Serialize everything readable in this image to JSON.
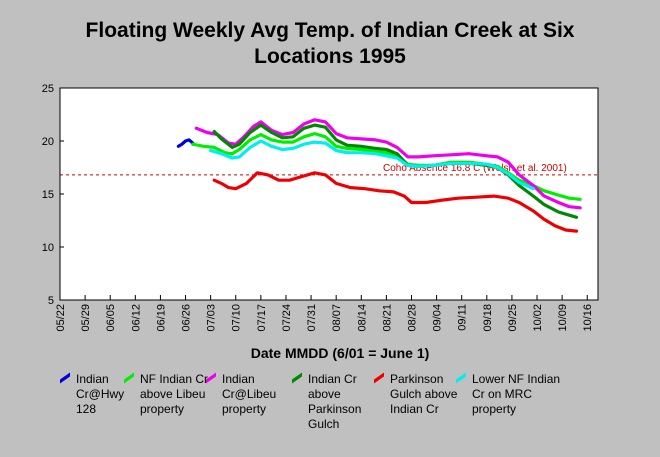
{
  "chart_data": {
    "type": "line",
    "title_line1": "Floating Weekly Avg Temp. of Indian Creek at Six",
    "title_line2": "Locations 1995",
    "xlabel": "Date MMDD (6/01 = June 1)",
    "ylabel": "",
    "ylim": [
      5,
      25
    ],
    "yticks": [
      5,
      10,
      15,
      20,
      25
    ],
    "x_axis": {
      "start": "05/22",
      "end": "10/19",
      "tick_labels": [
        "05/22",
        "05/29",
        "06/05",
        "06/12",
        "06/19",
        "06/26",
        "07/03",
        "07/10",
        "07/17",
        "07/24",
        "07/31",
        "08/07",
        "08/14",
        "08/21",
        "08/28",
        "09/04",
        "09/11",
        "09/18",
        "09/25",
        "10/02",
        "10/09",
        "10/16"
      ]
    },
    "reference_line": {
      "value": 16.8,
      "label": "Coho Absence 16.8 C (Welsh et al. 2001)",
      "color": "#cc0000"
    },
    "grid": false,
    "legend_position": "bottom",
    "series": [
      {
        "name": "Indian Cr@Hwy 128",
        "color": "#0000dd",
        "points": [
          [
            "06/24",
            19.5
          ],
          [
            "06/25",
            19.7
          ],
          [
            "06/26",
            20.0
          ],
          [
            "06/27",
            20.1
          ],
          [
            "06/28",
            19.8
          ]
        ]
      },
      {
        "name": "NF Indian Cr above Libeu property",
        "color": "#00ee00",
        "points": [
          [
            "06/28",
            19.7
          ],
          [
            "07/01",
            19.5
          ],
          [
            "07/04",
            19.4
          ],
          [
            "07/07",
            18.9
          ],
          [
            "07/09",
            18.8
          ],
          [
            "07/11",
            19.2
          ],
          [
            "07/14",
            20.1
          ],
          [
            "07/17",
            20.6
          ],
          [
            "07/20",
            20.1
          ],
          [
            "07/23",
            19.9
          ],
          [
            "07/26",
            19.9
          ],
          [
            "07/29",
            20.4
          ],
          [
            "08/01",
            20.7
          ],
          [
            "08/04",
            20.4
          ],
          [
            "08/07",
            19.5
          ],
          [
            "08/10",
            19.3
          ],
          [
            "08/14",
            19.2
          ],
          [
            "08/18",
            19.0
          ],
          [
            "08/21",
            18.9
          ],
          [
            "08/24",
            18.6
          ],
          [
            "08/27",
            17.8
          ],
          [
            "08/30",
            17.7
          ],
          [
            "09/03",
            17.7
          ],
          [
            "09/08",
            18.0
          ],
          [
            "09/13",
            18.0
          ],
          [
            "09/18",
            17.8
          ],
          [
            "09/21",
            17.6
          ],
          [
            "09/24",
            17.0
          ],
          [
            "09/27",
            16.3
          ],
          [
            "10/01",
            15.8
          ],
          [
            "10/04",
            15.3
          ],
          [
            "10/08",
            14.9
          ],
          [
            "10/11",
            14.6
          ],
          [
            "10/14",
            14.5
          ]
        ]
      },
      {
        "name": "Indian Cr@Libeu property",
        "color": "#ee00ee",
        "points": [
          [
            "06/29",
            21.2
          ],
          [
            "07/02",
            20.8
          ],
          [
            "07/05",
            20.6
          ],
          [
            "07/08",
            19.8
          ],
          [
            "07/10",
            19.7
          ],
          [
            "07/12",
            20.3
          ],
          [
            "07/15",
            21.4
          ],
          [
            "07/17",
            21.8
          ],
          [
            "07/20",
            21.0
          ],
          [
            "07/23",
            20.6
          ],
          [
            "07/26",
            20.8
          ],
          [
            "07/29",
            21.6
          ],
          [
            "08/01",
            22.0
          ],
          [
            "08/04",
            21.8
          ],
          [
            "08/07",
            20.7
          ],
          [
            "08/10",
            20.3
          ],
          [
            "08/14",
            20.2
          ],
          [
            "08/18",
            20.1
          ],
          [
            "08/21",
            19.9
          ],
          [
            "08/24",
            19.4
          ],
          [
            "08/27",
            18.5
          ],
          [
            "08/30",
            18.5
          ],
          [
            "09/03",
            18.6
          ],
          [
            "09/08",
            18.7
          ],
          [
            "09/13",
            18.8
          ],
          [
            "09/18",
            18.6
          ],
          [
            "09/21",
            18.5
          ],
          [
            "09/24",
            18.0
          ],
          [
            "09/27",
            16.8
          ],
          [
            "10/01",
            15.8
          ],
          [
            "10/04",
            14.8
          ],
          [
            "10/08",
            14.2
          ],
          [
            "10/11",
            13.8
          ],
          [
            "10/14",
            13.7
          ]
        ]
      },
      {
        "name": "Indian Cr above Parkinson Gulch",
        "color": "#008800",
        "points": [
          [
            "07/04",
            20.9
          ],
          [
            "07/06",
            20.2
          ],
          [
            "07/09",
            19.4
          ],
          [
            "07/11",
            19.7
          ],
          [
            "07/14",
            20.8
          ],
          [
            "07/17",
            21.5
          ],
          [
            "07/20",
            20.8
          ],
          [
            "07/23",
            20.3
          ],
          [
            "07/26",
            20.4
          ],
          [
            "07/29",
            21.2
          ],
          [
            "08/01",
            21.5
          ],
          [
            "08/04",
            21.3
          ],
          [
            "08/07",
            20.1
          ],
          [
            "08/10",
            19.6
          ],
          [
            "08/14",
            19.5
          ],
          [
            "08/18",
            19.3
          ],
          [
            "08/21",
            19.2
          ],
          [
            "08/24",
            18.8
          ],
          [
            "08/27",
            17.7
          ],
          [
            "08/30",
            17.6
          ],
          [
            "09/03",
            17.7
          ],
          [
            "09/08",
            17.9
          ],
          [
            "09/13",
            17.9
          ],
          [
            "09/18",
            17.7
          ],
          [
            "09/21",
            17.5
          ],
          [
            "09/24",
            16.8
          ],
          [
            "09/27",
            15.8
          ],
          [
            "10/01",
            14.8
          ],
          [
            "10/04",
            14.0
          ],
          [
            "10/08",
            13.3
          ],
          [
            "10/11",
            13.0
          ],
          [
            "10/13",
            12.8
          ]
        ]
      },
      {
        "name": "Parkinson Gulch above Indian Cr",
        "color": "#ee0000",
        "points": [
          [
            "07/04",
            16.3
          ],
          [
            "07/06",
            16.0
          ],
          [
            "07/08",
            15.6
          ],
          [
            "07/10",
            15.5
          ],
          [
            "07/13",
            16.0
          ],
          [
            "07/16",
            17.0
          ],
          [
            "07/19",
            16.8
          ],
          [
            "07/22",
            16.3
          ],
          [
            "07/25",
            16.3
          ],
          [
            "07/28",
            16.6
          ],
          [
            "08/01",
            17.0
          ],
          [
            "08/04",
            16.8
          ],
          [
            "08/07",
            16.0
          ],
          [
            "08/11",
            15.6
          ],
          [
            "08/15",
            15.5
          ],
          [
            "08/19",
            15.3
          ],
          [
            "08/23",
            15.2
          ],
          [
            "08/26",
            14.8
          ],
          [
            "08/28",
            14.2
          ],
          [
            "09/01",
            14.2
          ],
          [
            "09/05",
            14.4
          ],
          [
            "09/10",
            14.6
          ],
          [
            "09/15",
            14.7
          ],
          [
            "09/20",
            14.8
          ],
          [
            "09/24",
            14.6
          ],
          [
            "09/27",
            14.2
          ],
          [
            "10/01",
            13.4
          ],
          [
            "10/04",
            12.6
          ],
          [
            "10/07",
            12.0
          ],
          [
            "10/10",
            11.6
          ],
          [
            "10/13",
            11.5
          ]
        ]
      },
      {
        "name": "Lower NF Indian Cr on MRC property",
        "color": "#00eeee",
        "points": [
          [
            "07/03",
            19.1
          ],
          [
            "07/06",
            18.8
          ],
          [
            "07/09",
            18.4
          ],
          [
            "07/11",
            18.5
          ],
          [
            "07/14",
            19.4
          ],
          [
            "07/17",
            20.0
          ],
          [
            "07/20",
            19.5
          ],
          [
            "07/23",
            19.2
          ],
          [
            "07/26",
            19.3
          ],
          [
            "07/29",
            19.7
          ],
          [
            "08/01",
            19.9
          ],
          [
            "08/04",
            19.8
          ],
          [
            "08/07",
            19.1
          ],
          [
            "08/10",
            18.9
          ],
          [
            "08/14",
            18.9
          ],
          [
            "08/18",
            18.8
          ],
          [
            "08/21",
            18.6
          ],
          [
            "08/24",
            18.4
          ],
          [
            "08/27",
            17.7
          ],
          [
            "08/30",
            17.6
          ],
          [
            "09/03",
            17.7
          ],
          [
            "09/08",
            17.9
          ],
          [
            "09/13",
            17.9
          ],
          [
            "09/18",
            17.8
          ],
          [
            "09/21",
            17.5
          ],
          [
            "09/24",
            16.9
          ],
          [
            "09/27",
            16.1
          ],
          [
            "10/01",
            15.5
          ]
        ]
      }
    ]
  }
}
